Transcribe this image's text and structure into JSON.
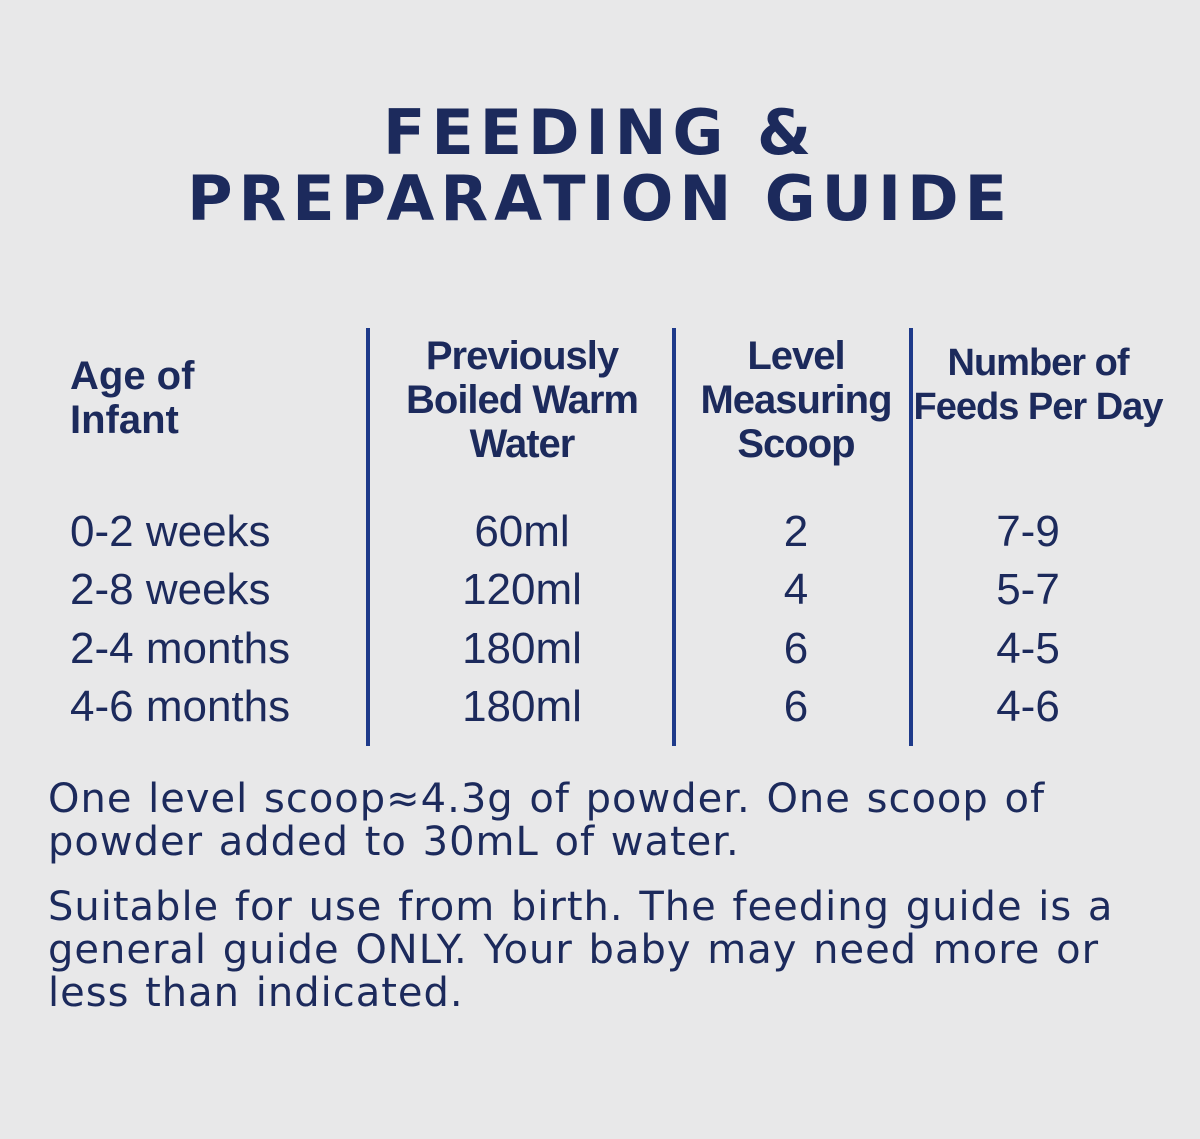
{
  "title": {
    "line1": "FEEDING &",
    "line2": "PREPARATION GUIDE"
  },
  "table": {
    "headers": [
      [
        "Age of",
        "Infant"
      ],
      [
        "Previously",
        "Boiled Warm",
        "Water"
      ],
      [
        "Level",
        "Measuring",
        "Scoop"
      ],
      [
        "Number of",
        "Feeds Per Day"
      ]
    ],
    "rows": [
      [
        "0-2 weeks",
        "60ml",
        "2",
        "7-9"
      ],
      [
        "2-8 weeks",
        "120ml",
        "4",
        "5-7"
      ],
      [
        "2-4 months",
        "180ml",
        "6",
        "4-5"
      ],
      [
        "4-6 months",
        "180ml",
        "6",
        "4-6"
      ]
    ]
  },
  "notes": [
    "One level scoop≈4.3g of powder. One scoop of powder added to 30mL of water.",
    "Suitable for use from birth. The feeding guide is a general guide ONLY. Your baby may need more or less than indicated."
  ],
  "colors": {
    "text": "#1c2a5c",
    "divider": "#1e3a8a",
    "background": "#e8e8e9"
  }
}
